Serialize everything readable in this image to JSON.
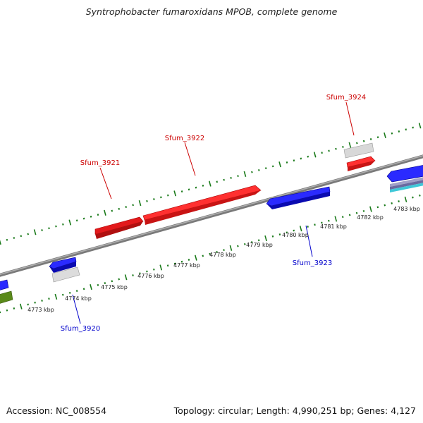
{
  "header": {
    "title": "Syntrophobacter fumaroxidans MPOB, complete genome"
  },
  "footer": {
    "accession": "Accession: NC_008554",
    "summary": "Topology: circular; Length: 4,990,251 bp; Genes: 4,127"
  },
  "map": {
    "scale_unit": "kbp",
    "scale_labels": [
      "4773 kbp",
      "4774 kbp",
      "4775 kbp",
      "4776 kbp",
      "4777 kbp",
      "4778 kbp",
      "4779 kbp",
      "4780 kbp",
      "4781 kbp",
      "4782 kbp",
      "4783 kbp"
    ],
    "gene_labels": [
      {
        "id": "g3921",
        "text": "Sfum_3921",
        "strand": "forward"
      },
      {
        "id": "g3922",
        "text": "Sfum_3922",
        "strand": "forward"
      },
      {
        "id": "g3924",
        "text": "Sfum_3924",
        "strand": "forward"
      },
      {
        "id": "g3923",
        "text": "Sfum_3923",
        "strand": "reverse"
      },
      {
        "id": "g3920",
        "text": "Sfum_3920",
        "strand": "reverse"
      }
    ],
    "colors": {
      "forward_gene": "#e31a1c",
      "reverse_gene": "#1010e0",
      "other_gene": "#c8c8c8",
      "backbone": "#8c8c8c",
      "ticks": "#1a7a1a",
      "forward_label": "#cc0000",
      "reverse_label": "#0000cc",
      "olive_feature": "#5a8a1a",
      "cyan_feature": "#40c8d8"
    }
  }
}
